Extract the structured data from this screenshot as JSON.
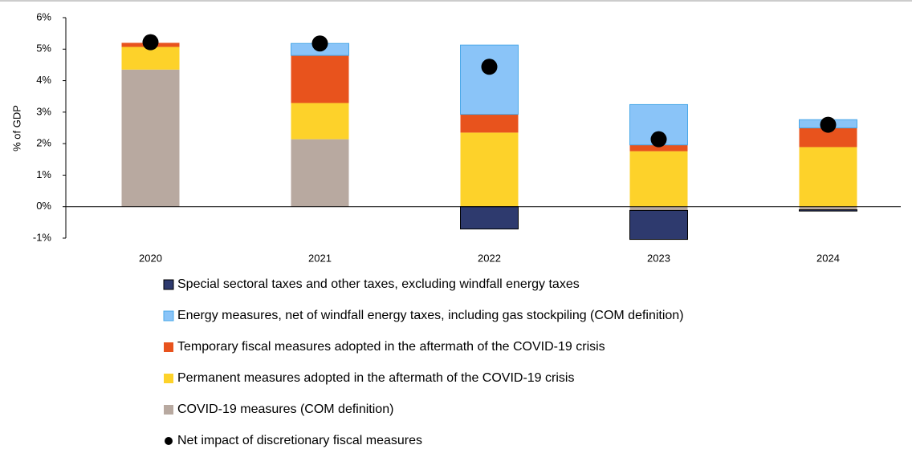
{
  "chart_data": {
    "type": "bar",
    "stacked": true,
    "y_label": "% of GDP",
    "categories": [
      "2020",
      "2021",
      "2022",
      "2023",
      "2024"
    ],
    "ylim": [
      -1,
      6
    ],
    "yticks": [
      {
        "value": -1,
        "label": "-1%"
      },
      {
        "value": 0,
        "label": "0%"
      },
      {
        "value": 1,
        "label": "1%"
      },
      {
        "value": 2,
        "label": "2%"
      },
      {
        "value": 3,
        "label": "3%"
      },
      {
        "value": 4,
        "label": "4%"
      },
      {
        "value": 5,
        "label": "5%"
      },
      {
        "value": 6,
        "label": "6%"
      }
    ],
    "grid": false,
    "series": [
      {
        "name": "Special sectoral taxes and other taxes, excluding windfall energy taxes",
        "color": "#2e3a6e",
        "values": [
          0,
          0,
          -0.71,
          -0.92,
          -0.04
        ]
      },
      {
        "name": "Energy measures, net of windfall energy taxes, including gas stockpiling (COM definition)",
        "color": "#8ac4f8",
        "values": [
          0,
          0.38,
          2.2,
          1.28,
          0.26
        ]
      },
      {
        "name": "Temporary fiscal measures adopted in the aftermath of the COVID-19 crisis",
        "color": "#e8531d",
        "values": [
          0.13,
          1.51,
          0.58,
          0.2,
          0.61
        ]
      },
      {
        "name": "Permanent measures adopted in the aftermath of the COVID-19 crisis",
        "color": "#fdd22a",
        "values": [
          0.72,
          1.15,
          2.35,
          1.76,
          1.89
        ]
      },
      {
        "name": "COVID-19 measures (COM definition)",
        "color": "#b8a9a0",
        "values": [
          4.35,
          2.14,
          0,
          -0.12,
          -0.1
        ]
      }
    ],
    "dots": {
      "name": "Net impact of discretionary fiscal measures",
      "color": "#000000",
      "values": [
        5.22,
        5.18,
        4.44,
        2.14,
        2.6
      ]
    }
  }
}
